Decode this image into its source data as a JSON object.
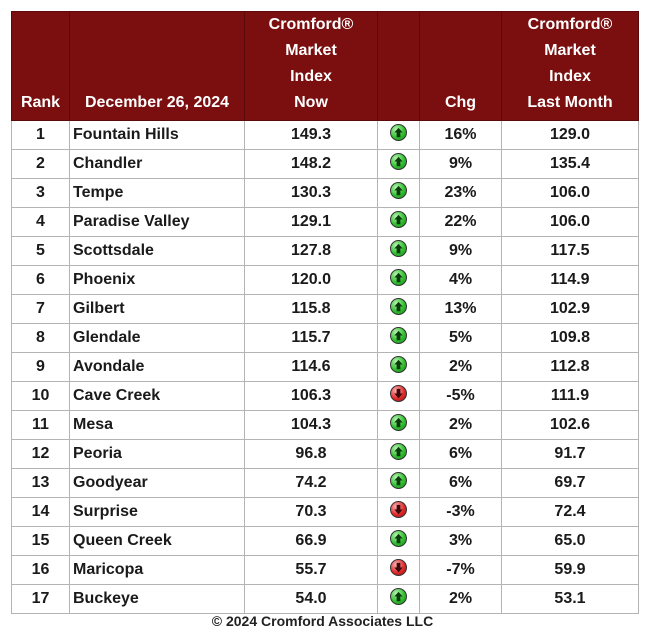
{
  "header": {
    "rank": "Rank",
    "date": "December 26, 2024",
    "index_now": [
      "Cromford®",
      "Market",
      "Index",
      "Now"
    ],
    "chg": "Chg",
    "index_last_month": [
      "Cromford®",
      "Market",
      "Index",
      "Last Month"
    ]
  },
  "colors": {
    "header_bg": "#7b0f0f",
    "up": "#2fbf2f",
    "down": "#e02a2a"
  },
  "chart_data": {
    "type": "table",
    "columns": [
      "Rank",
      "December 26, 2024",
      "Cromford® Market Index Now",
      "",
      "Chg",
      "Cromford® Market Index Last Month"
    ],
    "rows": [
      {
        "rank": "1",
        "market": "Fountain Hills",
        "now": "149.3",
        "direction": "up",
        "chg": "16%",
        "last": "129.0"
      },
      {
        "rank": "2",
        "market": "Chandler",
        "now": "148.2",
        "direction": "up",
        "chg": "9%",
        "last": "135.4"
      },
      {
        "rank": "3",
        "market": "Tempe",
        "now": "130.3",
        "direction": "up",
        "chg": "23%",
        "last": "106.0"
      },
      {
        "rank": "4",
        "market": "Paradise Valley",
        "now": "129.1",
        "direction": "up",
        "chg": "22%",
        "last": "106.0"
      },
      {
        "rank": "5",
        "market": "Scottsdale",
        "now": "127.8",
        "direction": "up",
        "chg": "9%",
        "last": "117.5"
      },
      {
        "rank": "6",
        "market": "Phoenix",
        "now": "120.0",
        "direction": "up",
        "chg": "4%",
        "last": "114.9"
      },
      {
        "rank": "7",
        "market": "Gilbert",
        "now": "115.8",
        "direction": "up",
        "chg": "13%",
        "last": "102.9"
      },
      {
        "rank": "8",
        "market": "Glendale",
        "now": "115.7",
        "direction": "up",
        "chg": "5%",
        "last": "109.8"
      },
      {
        "rank": "9",
        "market": "Avondale",
        "now": "114.6",
        "direction": "up",
        "chg": "2%",
        "last": "112.8"
      },
      {
        "rank": "10",
        "market": "Cave Creek",
        "now": "106.3",
        "direction": "down",
        "chg": "-5%",
        "last": "111.9"
      },
      {
        "rank": "11",
        "market": "Mesa",
        "now": "104.3",
        "direction": "up",
        "chg": "2%",
        "last": "102.6"
      },
      {
        "rank": "12",
        "market": "Peoria",
        "now": "96.8",
        "direction": "up",
        "chg": "6%",
        "last": "91.7"
      },
      {
        "rank": "13",
        "market": "Goodyear",
        "now": "74.2",
        "direction": "up",
        "chg": "6%",
        "last": "69.7"
      },
      {
        "rank": "14",
        "market": "Surprise",
        "now": "70.3",
        "direction": "down",
        "chg": "-3%",
        "last": "72.4"
      },
      {
        "rank": "15",
        "market": "Queen Creek",
        "now": "66.9",
        "direction": "up",
        "chg": "3%",
        "last": "65.0"
      },
      {
        "rank": "16",
        "market": "Maricopa",
        "now": "55.7",
        "direction": "down",
        "chg": "-7%",
        "last": "59.9"
      },
      {
        "rank": "17",
        "market": "Buckeye",
        "now": "54.0",
        "direction": "up",
        "chg": "2%",
        "last": "53.1"
      }
    ]
  },
  "footer": {
    "copyright": "© 2024 Cromford Associates LLC"
  }
}
